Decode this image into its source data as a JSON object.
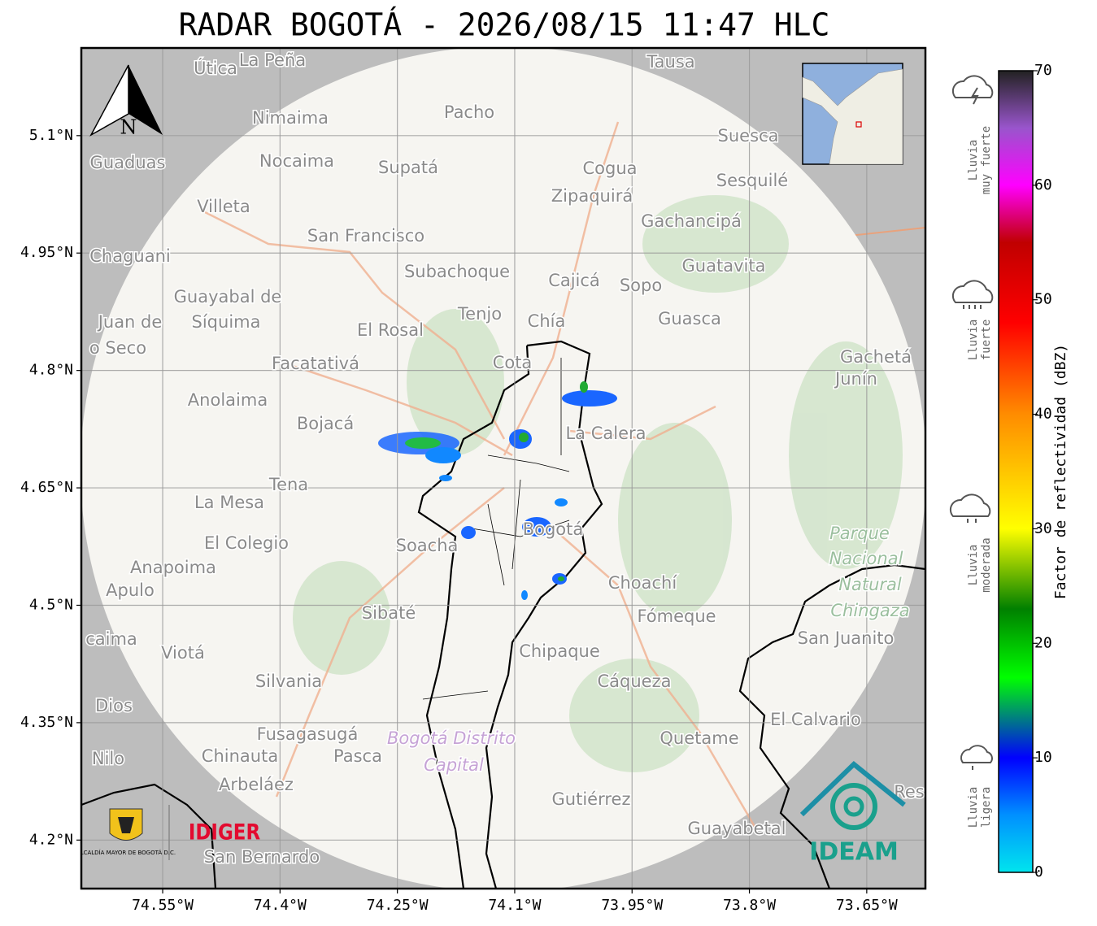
{
  "title": "RADAR BOGOTÁ - 2026/08/15 11:47 HLC",
  "map": {
    "xlim": [
      -74.654,
      -73.575
    ],
    "ylim": [
      4.138,
      5.212
    ],
    "lon_ticks": [
      {
        "value": -74.55,
        "label": "74.55°W"
      },
      {
        "value": -74.4,
        "label": "74.4°W"
      },
      {
        "value": -74.25,
        "label": "74.25°W"
      },
      {
        "value": -74.1,
        "label": "74.1°W"
      },
      {
        "value": -73.95,
        "label": "73.95°W"
      },
      {
        "value": -73.8,
        "label": "73.8°W"
      },
      {
        "value": -73.65,
        "label": "73.65°W"
      }
    ],
    "lat_ticks": [
      {
        "value": 5.1,
        "label": "5.1°N"
      },
      {
        "value": 4.95,
        "label": "4.95°N"
      },
      {
        "value": 4.8,
        "label": "4.8°N"
      },
      {
        "value": 4.65,
        "label": "4.65°N"
      },
      {
        "value": 4.5,
        "label": "4.5°N"
      },
      {
        "value": 4.35,
        "label": "4.35°N"
      },
      {
        "value": 4.2,
        "label": "4.2°N"
      }
    ],
    "north": "N",
    "places": [
      "Útica",
      "La Peña",
      "Tausa",
      "Pacho",
      "Nimaima",
      "Guaduas",
      "Nocaima",
      "Supatá",
      "Cogua",
      "Suesca",
      "Sesquilé",
      "Zipaquirá",
      "Villeta",
      "Gachancipá",
      "San Francisco",
      "Chaguani",
      "Guatavita",
      "Subachoque",
      "Cajicá",
      "Sopo",
      "Guayabal de",
      "Síquima",
      "Tenjo",
      "Chía",
      "Guasca",
      "Juan de",
      "o Seco",
      "El Rosal",
      "Cota",
      "Facatativá",
      "Gachetá",
      "Junín",
      "Anolaima",
      "Bojacá",
      "La Calera",
      "Tena",
      "La Mesa",
      "Parque",
      "Nacional",
      "Natural",
      "Chingaza",
      "Bogotá",
      "Soacha",
      "El Colegio",
      "Anapoima",
      "Apulo",
      "Choachí",
      "Sibaté",
      "Fómeque",
      "San Juanito",
      "caima",
      "Viotá",
      "Chipaque",
      "Silvania",
      "Cáqueza",
      "Dios",
      "El Calvario",
      "Fusagasugá",
      "Bogotá Distrito",
      "Capital",
      "Quetame",
      "Nilo",
      "Chinauta",
      "Pasca",
      "Arbeláez",
      "Gutiérrez",
      "Res",
      "Guayabetal",
      "San Bernardo"
    ]
  },
  "logos": {
    "alcaldia": "ALCALDÍA MAYOR DE BOGOTÁ D.C.",
    "idiger": "IDIGER",
    "ideam": "IDEAM"
  },
  "colorbar": {
    "label": "Factor de reflectividad (dBZ)",
    "lim": [
      0,
      70
    ],
    "ticks": [
      0,
      10,
      20,
      30,
      40,
      50,
      60,
      70
    ],
    "stops": [
      {
        "value": 0,
        "color": "#00e5ee"
      },
      {
        "value": 5,
        "color": "#0090ff"
      },
      {
        "value": 10,
        "color": "#0000ff"
      },
      {
        "value": 17,
        "color": "#00ff00"
      },
      {
        "value": 23,
        "color": "#008000"
      },
      {
        "value": 30,
        "color": "#ffff00"
      },
      {
        "value": 40,
        "color": "#ff8c00"
      },
      {
        "value": 48,
        "color": "#ff0000"
      },
      {
        "value": 55,
        "color": "#c00000"
      },
      {
        "value": 60,
        "color": "#ff00ff"
      },
      {
        "value": 65,
        "color": "#9955cc"
      },
      {
        "value": 70,
        "color": "#222222"
      }
    ]
  },
  "rain_levels": [
    [
      "Lluvia",
      "muy fuerte"
    ],
    [
      "Lluvia",
      "fuerte"
    ],
    [
      "Lluvia",
      "moderada"
    ],
    [
      "Lluvia",
      "ligera"
    ]
  ]
}
